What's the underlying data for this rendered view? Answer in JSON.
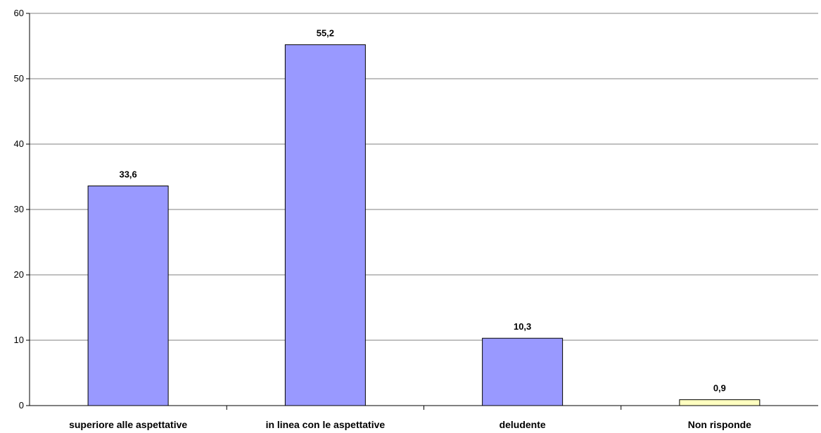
{
  "chart_data": {
    "type": "bar",
    "title": "",
    "xlabel": "",
    "ylabel": "",
    "categories": [
      "superiore alle aspettative",
      "in linea con le aspettative",
      "deludente",
      "Non risponde"
    ],
    "values": [
      33.6,
      55.2,
      10.3,
      0.9
    ],
    "value_labels": [
      "33,6",
      "55,2",
      "10,3",
      "0,9"
    ],
    "bar_colors": [
      "#9999ff",
      "#9999ff",
      "#9999ff",
      "#ffffc0"
    ],
    "ylim": [
      0,
      60
    ],
    "yticks": [
      0,
      10,
      20,
      30,
      40,
      50,
      60
    ],
    "ytick_labels": [
      "0",
      "10",
      "20",
      "30",
      "40",
      "50",
      "60"
    ],
    "grid": true,
    "legend": "none"
  }
}
